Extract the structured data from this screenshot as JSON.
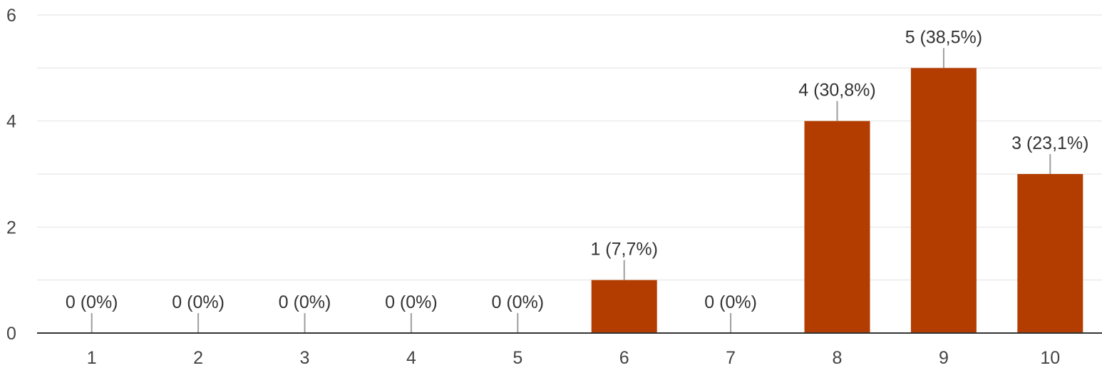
{
  "chart_data": {
    "type": "bar",
    "categories": [
      "1",
      "2",
      "3",
      "4",
      "5",
      "6",
      "7",
      "8",
      "9",
      "10"
    ],
    "values": [
      0,
      0,
      0,
      0,
      0,
      1,
      0,
      4,
      5,
      3
    ],
    "data_labels": [
      "0 (0%)",
      "0 (0%)",
      "0 (0%)",
      "0 (0%)",
      "0 (0%)",
      "1 (7,7%)",
      "0 (0%)",
      "4 (30,8%)",
      "5 (38,5%)",
      "3 (23,1%)"
    ],
    "yticks": [
      "0",
      "2",
      "4",
      "6"
    ],
    "ylim": [
      0,
      6
    ],
    "grid": true,
    "bar_color": "#b33d00"
  }
}
